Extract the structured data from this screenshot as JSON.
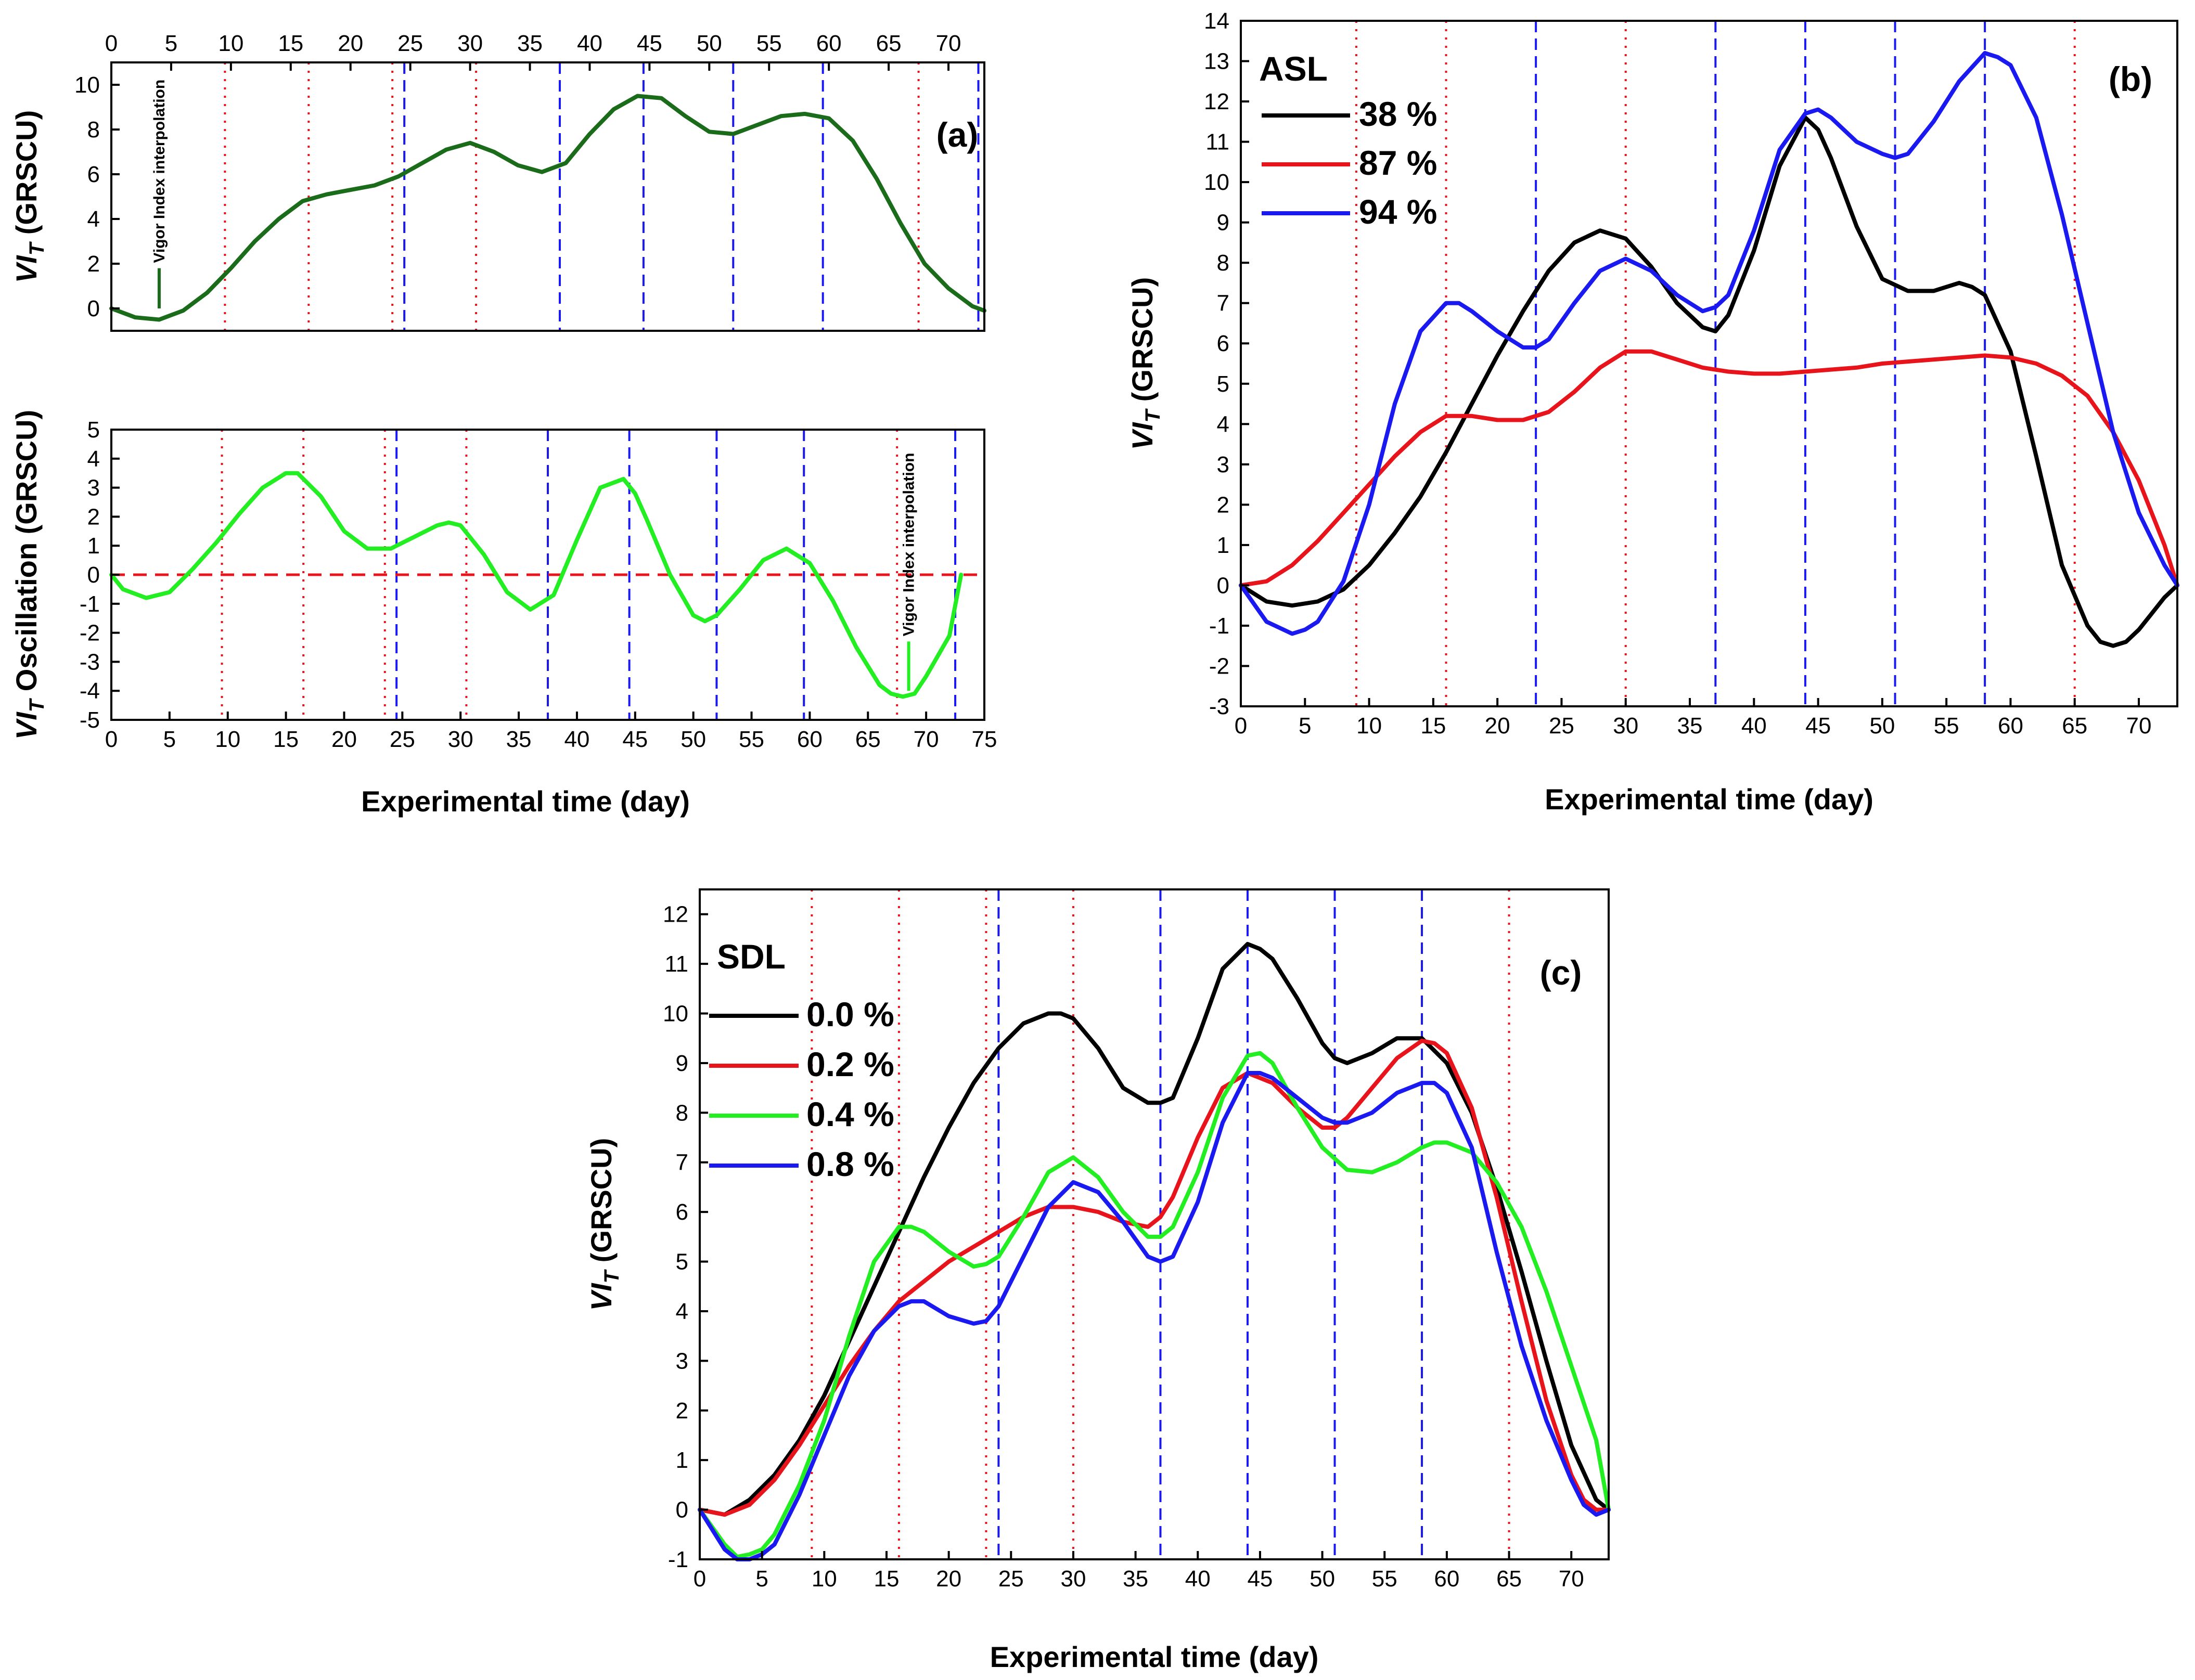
{
  "chart_data": [
    {
      "id": "a-top",
      "type": "line",
      "panel_label": "(a)",
      "title": "",
      "xlabel": "",
      "ylabel": "VI_T (GRSCU)",
      "ylabel_main": "VI",
      "ylabel_sub": "T",
      "ylabel_rest": " (GRSCU)",
      "xlim": [
        0,
        73
      ],
      "ylim": [
        -1,
        11
      ],
      "x_ticks": [
        0,
        5,
        10,
        15,
        20,
        25,
        30,
        35,
        40,
        45,
        50,
        55,
        60,
        65,
        70
      ],
      "x_ticks_top": true,
      "y_ticks": [
        0,
        2,
        4,
        6,
        8,
        10
      ],
      "red_dotted_lines": [
        9.5,
        16.5,
        23.5,
        30.5,
        67.5
      ],
      "blue_dashed_lines": [
        24.5,
        37.5,
        44.5,
        52,
        59.5,
        72.5
      ],
      "annotation": {
        "text": "Vigor Index interpolation",
        "x": 4,
        "y_from": 0,
        "y_to": 1.8
      },
      "series": [
        {
          "name": "VI_T",
          "color": "#1a6b1a",
          "x": [
            0,
            2,
            4,
            6,
            8,
            10,
            12,
            14,
            16,
            18,
            20,
            22,
            24,
            26,
            28,
            30,
            32,
            34,
            36,
            38,
            40,
            42,
            44,
            46,
            48,
            50,
            52,
            54,
            56,
            58,
            60,
            62,
            64,
            66,
            68,
            70,
            72,
            73
          ],
          "y": [
            0,
            -0.4,
            -0.5,
            -0.1,
            0.7,
            1.8,
            3.0,
            4.0,
            4.8,
            5.1,
            5.3,
            5.5,
            5.9,
            6.5,
            7.1,
            7.4,
            7.0,
            6.4,
            6.1,
            6.5,
            7.8,
            8.9,
            9.5,
            9.4,
            8.6,
            7.9,
            7.8,
            8.2,
            8.6,
            8.7,
            8.5,
            7.5,
            5.8,
            3.8,
            2.0,
            0.9,
            0.1,
            -0.1
          ]
        }
      ]
    },
    {
      "id": "a-bottom",
      "type": "line",
      "title": "",
      "xlabel": "Experimental time (day)",
      "ylabel": "VI_T Oscillation (GRSCU)",
      "ylabel_main": "VI",
      "ylabel_sub": "T",
      "ylabel_rest": " Oscillation (GRSCU)",
      "xlim": [
        0,
        75
      ],
      "ylim": [
        -5,
        5
      ],
      "x_ticks": [
        0,
        5,
        10,
        15,
        20,
        25,
        30,
        35,
        40,
        45,
        50,
        55,
        60,
        65,
        70,
        75
      ],
      "y_ticks": [
        -5,
        -4,
        -3,
        -2,
        -1,
        0,
        1,
        2,
        3,
        4,
        5
      ],
      "zero_line_color": "#e8141c",
      "red_dotted_lines": [
        9.5,
        16.5,
        23.5,
        30.5,
        67.5
      ],
      "blue_dashed_lines": [
        24.5,
        37.5,
        44.5,
        52,
        59.5,
        72.5
      ],
      "annotation": {
        "text": "Vigor Index interpolation",
        "x": 68.5,
        "y_from": -4,
        "y_to": -2.3
      },
      "series": [
        {
          "name": "VI_T Oscillation",
          "color": "#22ee22",
          "x": [
            0,
            1,
            3,
            5,
            7,
            9,
            11,
            13,
            15,
            16,
            18,
            20,
            22,
            24,
            26,
            28,
            29,
            30,
            32,
            34,
            36,
            38,
            40,
            42,
            44,
            45,
            46,
            48,
            50,
            51,
            52,
            54,
            56,
            58,
            60,
            62,
            64,
            66,
            67,
            68,
            69,
            70,
            72,
            73
          ],
          "y": [
            0,
            -0.5,
            -0.8,
            -0.6,
            0.2,
            1.1,
            2.1,
            3.0,
            3.5,
            3.5,
            2.7,
            1.5,
            0.9,
            0.9,
            1.3,
            1.7,
            1.8,
            1.7,
            0.7,
            -0.6,
            -1.2,
            -0.7,
            1.2,
            3.0,
            3.3,
            2.8,
            1.9,
            0,
            -1.4,
            -1.6,
            -1.4,
            -0.5,
            0.5,
            0.9,
            0.4,
            -0.9,
            -2.5,
            -3.8,
            -4.1,
            -4.2,
            -4.1,
            -3.5,
            -2.1,
            0
          ]
        }
      ]
    },
    {
      "id": "b",
      "type": "line",
      "panel_label": "(b)",
      "title": "",
      "xlabel": "Experimental time (day)",
      "ylabel": "VI_T (GRSCU)",
      "ylabel_main": "VI",
      "ylabel_sub": "T",
      "ylabel_rest": " (GRSCU)",
      "legend_title": "ASL",
      "legend_position": "top-left",
      "xlim": [
        0,
        73
      ],
      "ylim": [
        -3,
        14
      ],
      "x_ticks": [
        0,
        5,
        10,
        15,
        20,
        25,
        30,
        35,
        40,
        45,
        50,
        55,
        60,
        65,
        70
      ],
      "y_ticks": [
        -3,
        -2,
        -1,
        0,
        1,
        2,
        3,
        4,
        5,
        6,
        7,
        8,
        9,
        10,
        11,
        12,
        13,
        14
      ],
      "red_dotted_lines": [
        9,
        16,
        30,
        65
      ],
      "blue_dashed_lines": [
        23,
        37,
        44,
        51,
        58
      ],
      "series": [
        {
          "name": "38 %",
          "color": "#000000",
          "x": [
            0,
            2,
            4,
            6,
            8,
            10,
            12,
            14,
            16,
            18,
            20,
            22,
            24,
            26,
            28,
            29,
            30,
            32,
            34,
            36,
            37,
            38,
            40,
            42,
            44,
            45,
            46,
            48,
            50,
            52,
            54,
            56,
            57,
            58,
            60,
            62,
            64,
            66,
            67,
            68,
            69,
            70,
            71,
            72,
            73
          ],
          "y": [
            0,
            -0.4,
            -0.5,
            -0.4,
            -0.1,
            0.5,
            1.3,
            2.2,
            3.3,
            4.5,
            5.7,
            6.8,
            7.8,
            8.5,
            8.8,
            8.7,
            8.6,
            7.9,
            7.0,
            6.4,
            6.3,
            6.7,
            8.3,
            10.4,
            11.6,
            11.3,
            10.6,
            8.9,
            7.6,
            7.3,
            7.3,
            7.5,
            7.4,
            7.2,
            5.8,
            3.2,
            0.5,
            -1.0,
            -1.4,
            -1.5,
            -1.4,
            -1.1,
            -0.7,
            -0.3,
            0
          ]
        },
        {
          "name": "87 %",
          "color": "#e8141c",
          "x": [
            0,
            2,
            4,
            6,
            8,
            10,
            12,
            14,
            16,
            18,
            20,
            22,
            24,
            26,
            28,
            30,
            32,
            34,
            36,
            38,
            40,
            42,
            44,
            46,
            48,
            50,
            52,
            54,
            56,
            58,
            60,
            62,
            64,
            66,
            68,
            70,
            72,
            73
          ],
          "y": [
            0,
            0.1,
            0.5,
            1.1,
            1.8,
            2.5,
            3.2,
            3.8,
            4.2,
            4.2,
            4.1,
            4.1,
            4.3,
            4.8,
            5.4,
            5.8,
            5.8,
            5.6,
            5.4,
            5.3,
            5.25,
            5.25,
            5.3,
            5.35,
            5.4,
            5.5,
            5.55,
            5.6,
            5.65,
            5.7,
            5.65,
            5.5,
            5.2,
            4.7,
            3.8,
            2.6,
            1.0,
            0
          ]
        },
        {
          "name": "94 %",
          "color": "#1a1af0",
          "x": [
            0,
            2,
            4,
            5,
            6,
            8,
            10,
            12,
            14,
            16,
            17,
            18,
            20,
            22,
            23,
            24,
            26,
            28,
            30,
            32,
            34,
            36,
            37,
            38,
            40,
            42,
            44,
            45,
            46,
            48,
            50,
            51,
            52,
            54,
            56,
            58,
            59,
            60,
            62,
            64,
            66,
            68,
            70,
            72,
            73
          ],
          "y": [
            0,
            -0.9,
            -1.2,
            -1.1,
            -0.9,
            0.1,
            2.0,
            4.5,
            6.3,
            7.0,
            7.0,
            6.8,
            6.3,
            5.9,
            5.9,
            6.1,
            7.0,
            7.8,
            8.1,
            7.8,
            7.2,
            6.8,
            6.9,
            7.2,
            8.8,
            10.8,
            11.7,
            11.8,
            11.6,
            11.0,
            10.7,
            10.6,
            10.7,
            11.5,
            12.5,
            13.2,
            13.1,
            12.9,
            11.6,
            9.2,
            6.5,
            3.8,
            1.8,
            0.5,
            0
          ]
        }
      ]
    },
    {
      "id": "c",
      "type": "line",
      "panel_label": "(c)",
      "title": "",
      "xlabel": "Experimental time (day)",
      "ylabel": "VI_T (GRSCU)",
      "ylabel_main": "VI",
      "ylabel_sub": "T",
      "ylabel_rest": " (GRSCU)",
      "legend_title": "SDL",
      "legend_position": "top-left",
      "xlim": [
        0,
        73
      ],
      "ylim": [
        -1,
        12.5
      ],
      "x_ticks": [
        0,
        5,
        10,
        15,
        20,
        25,
        30,
        35,
        40,
        45,
        50,
        55,
        60,
        65,
        70
      ],
      "y_ticks": [
        -1,
        0,
        1,
        2,
        3,
        4,
        5,
        6,
        7,
        8,
        9,
        10,
        11,
        12
      ],
      "red_dotted_lines": [
        9,
        16,
        23,
        30,
        65
      ],
      "blue_dashed_lines": [
        24,
        37,
        44,
        51,
        58
      ],
      "series": [
        {
          "name": "0.0 %",
          "color": "#000000",
          "x": [
            0,
            2,
            4,
            6,
            8,
            10,
            12,
            14,
            16,
            18,
            20,
            22,
            24,
            26,
            28,
            29,
            30,
            32,
            34,
            36,
            37,
            38,
            40,
            42,
            44,
            45,
            46,
            48,
            50,
            51,
            52,
            54,
            56,
            58,
            60,
            62,
            64,
            66,
            68,
            70,
            72,
            73
          ],
          "y": [
            0,
            -0.1,
            0.2,
            0.7,
            1.4,
            2.3,
            3.4,
            4.5,
            5.6,
            6.7,
            7.7,
            8.6,
            9.3,
            9.8,
            10.0,
            10.0,
            9.9,
            9.3,
            8.5,
            8.2,
            8.2,
            8.3,
            9.5,
            10.9,
            11.4,
            11.3,
            11.1,
            10.3,
            9.4,
            9.1,
            9.0,
            9.2,
            9.5,
            9.5,
            9.0,
            8.0,
            6.5,
            4.8,
            3.0,
            1.3,
            0.2,
            0
          ]
        },
        {
          "name": "0.2 %",
          "color": "#e8141c",
          "x": [
            0,
            2,
            4,
            6,
            8,
            10,
            12,
            14,
            16,
            18,
            20,
            22,
            24,
            26,
            28,
            30,
            32,
            34,
            36,
            37,
            38,
            40,
            42,
            44,
            46,
            48,
            50,
            51,
            52,
            54,
            56,
            58,
            59,
            60,
            62,
            64,
            66,
            68,
            70,
            71,
            72,
            73
          ],
          "y": [
            0,
            -0.1,
            0.1,
            0.6,
            1.3,
            2.1,
            2.9,
            3.6,
            4.2,
            4.6,
            5.0,
            5.3,
            5.6,
            5.9,
            6.1,
            6.1,
            6.0,
            5.8,
            5.7,
            5.9,
            6.3,
            7.5,
            8.5,
            8.8,
            8.6,
            8.1,
            7.7,
            7.7,
            7.9,
            8.5,
            9.1,
            9.45,
            9.4,
            9.2,
            8.1,
            6.3,
            4.2,
            2.2,
            0.7,
            0.2,
            0,
            0
          ]
        },
        {
          "name": "0.4 %",
          "color": "#22ee22",
          "x": [
            0,
            2,
            3,
            4,
            5,
            6,
            8,
            10,
            12,
            14,
            16,
            17,
            18,
            20,
            22,
            23,
            24,
            26,
            28,
            30,
            32,
            34,
            36,
            37,
            38,
            40,
            42,
            44,
            45,
            46,
            48,
            50,
            52,
            54,
            56,
            58,
            59,
            60,
            62,
            64,
            66,
            68,
            70,
            72,
            73
          ],
          "y": [
            0,
            -0.7,
            -0.95,
            -0.9,
            -0.8,
            -0.5,
            0.5,
            1.8,
            3.5,
            5.0,
            5.7,
            5.7,
            5.6,
            5.2,
            4.9,
            4.95,
            5.1,
            5.9,
            6.8,
            7.1,
            6.7,
            6.0,
            5.5,
            5.5,
            5.7,
            6.8,
            8.3,
            9.15,
            9.2,
            9.0,
            8.1,
            7.3,
            6.85,
            6.8,
            7.0,
            7.3,
            7.4,
            7.4,
            7.2,
            6.6,
            5.7,
            4.4,
            2.9,
            1.4,
            0
          ]
        },
        {
          "name": "0.8 %",
          "color": "#1a1af0",
          "x": [
            0,
            2,
            3,
            4,
            5,
            6,
            8,
            10,
            12,
            14,
            16,
            17,
            18,
            20,
            22,
            23,
            24,
            26,
            28,
            30,
            32,
            34,
            36,
            37,
            38,
            40,
            42,
            44,
            45,
            46,
            48,
            50,
            51,
            52,
            54,
            56,
            58,
            59,
            60,
            62,
            64,
            66,
            68,
            70,
            71,
            72,
            73
          ],
          "y": [
            0,
            -0.8,
            -1.0,
            -1.0,
            -0.9,
            -0.7,
            0.3,
            1.5,
            2.7,
            3.6,
            4.1,
            4.2,
            4.2,
            3.9,
            3.75,
            3.8,
            4.1,
            5.1,
            6.1,
            6.6,
            6.4,
            5.8,
            5.1,
            5.0,
            5.1,
            6.2,
            7.8,
            8.8,
            8.8,
            8.7,
            8.3,
            7.9,
            7.8,
            7.8,
            8.0,
            8.4,
            8.6,
            8.6,
            8.4,
            7.3,
            5.2,
            3.3,
            1.8,
            0.6,
            0.1,
            -0.1,
            0
          ]
        }
      ]
    }
  ]
}
